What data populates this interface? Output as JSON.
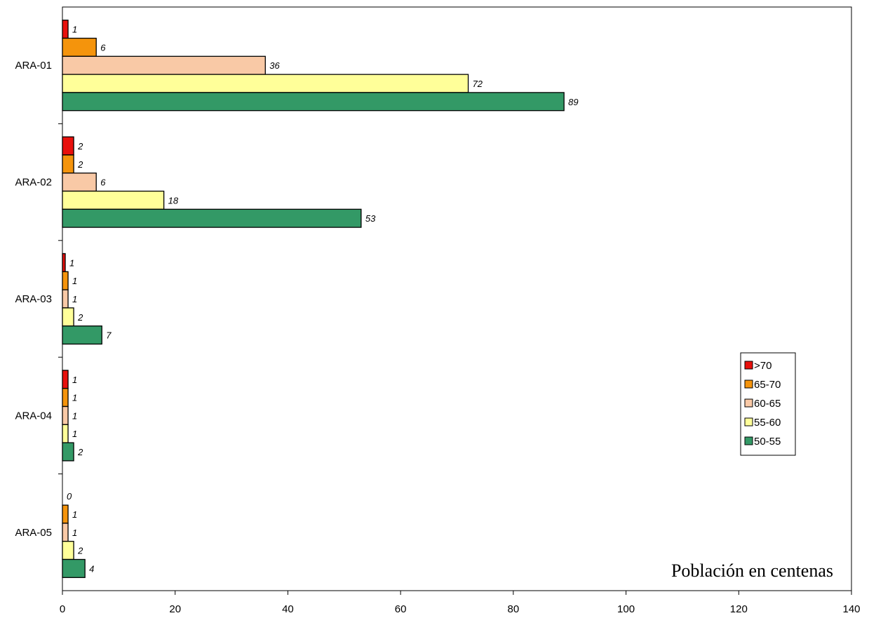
{
  "chart_data": {
    "type": "bar",
    "orientation": "horizontal",
    "categories": [
      "ARA-01",
      "ARA-02",
      "ARA-03",
      "ARA-04",
      "ARA-05"
    ],
    "series": [
      {
        "name": ">70",
        "color": "#e8100c",
        "values": [
          1,
          2,
          0.5,
          1,
          0
        ]
      },
      {
        "name": "65-70",
        "color": "#f5940c",
        "values": [
          6,
          2,
          1,
          1,
          1
        ]
      },
      {
        "name": "60-65",
        "color": "#f9c9a6",
        "values": [
          36,
          6,
          1,
          1,
          1
        ]
      },
      {
        "name": "55-60",
        "color": "#ffff99",
        "values": [
          72,
          18,
          2,
          1,
          2
        ]
      },
      {
        "name": "50-55",
        "color": "#339966",
        "values": [
          89,
          53,
          7,
          2,
          4
        ]
      }
    ],
    "data_labels": [
      [
        "1",
        "2",
        "1",
        "1",
        "0"
      ],
      [
        "6",
        "2",
        "1",
        "1",
        "1"
      ],
      [
        "36",
        "6",
        "1",
        "1",
        "1"
      ],
      [
        "72",
        "18",
        "2",
        "1",
        "2"
      ],
      [
        "89",
        "53",
        "7",
        "2",
        "4"
      ]
    ],
    "xlim": [
      0,
      140
    ],
    "x_ticks": [
      "0",
      "20",
      "40",
      "60",
      "80",
      "100",
      "120",
      "140"
    ],
    "annotation": "Población en centenas",
    "legend_position": "right",
    "grid": false,
    "title": "",
    "xlabel": "",
    "ylabel": ""
  }
}
